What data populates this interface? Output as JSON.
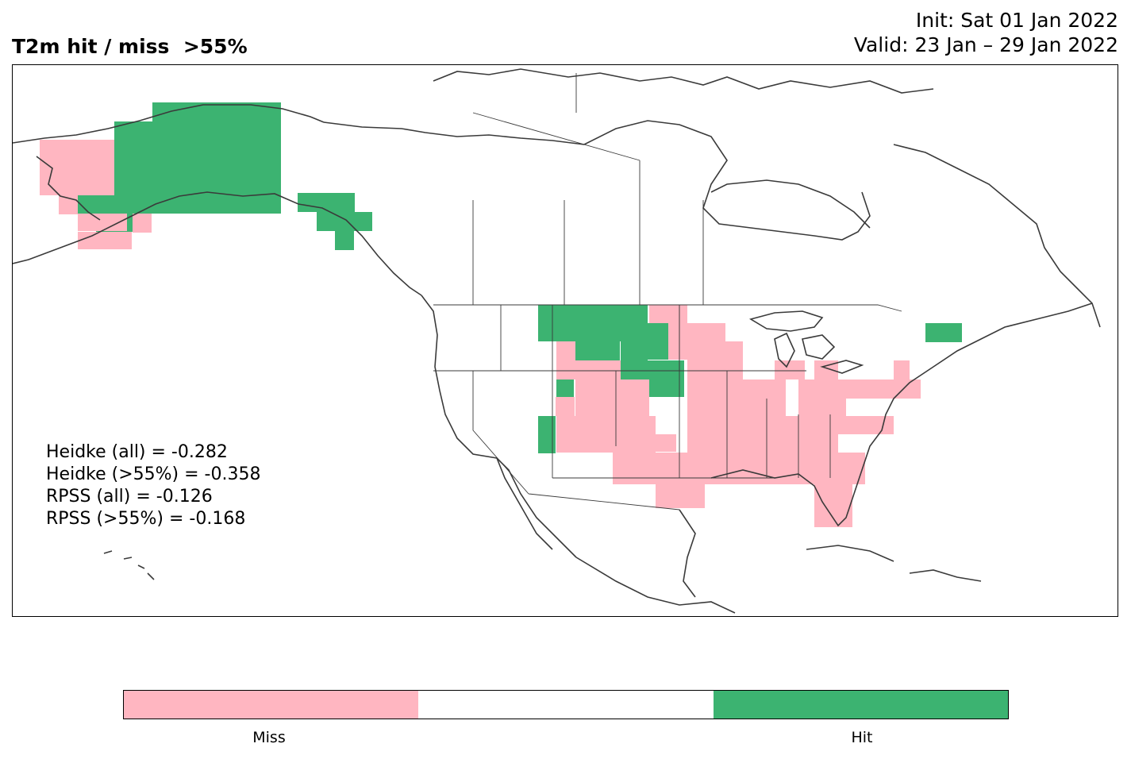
{
  "header": {
    "title": "T2m hit / miss  >55%",
    "init": "Init: Sat 01 Jan 2022",
    "valid": "Valid: 23 Jan – 29 Jan 2022"
  },
  "stats": {
    "heidke_all": "Heidke (all) = -0.282",
    "heidke_55": "Heidke (>55%) = -0.358",
    "rpss_all": "RPSS (all) = -0.126",
    "rpss_55": "RPSS (>55%) = -0.168"
  },
  "legend": {
    "miss_label": "Miss",
    "hit_label": "Hit",
    "colors": {
      "miss": "#ffb6c1",
      "neutral": "#ffffff",
      "hit": "#3cb371"
    }
  },
  "map": {
    "land_outline_color": "#3a3a3a",
    "regions": {
      "alaska": "hit",
      "alaska_west": "miss",
      "alaska_south": "miss",
      "alaska_panhandle": "hit",
      "northern_plains": "hit",
      "central_us": "miss",
      "southern_us": "miss",
      "northeast_us": "miss",
      "new_england": "hit",
      "florida": "miss",
      "arizona": "hit",
      "southwest": "miss"
    }
  }
}
